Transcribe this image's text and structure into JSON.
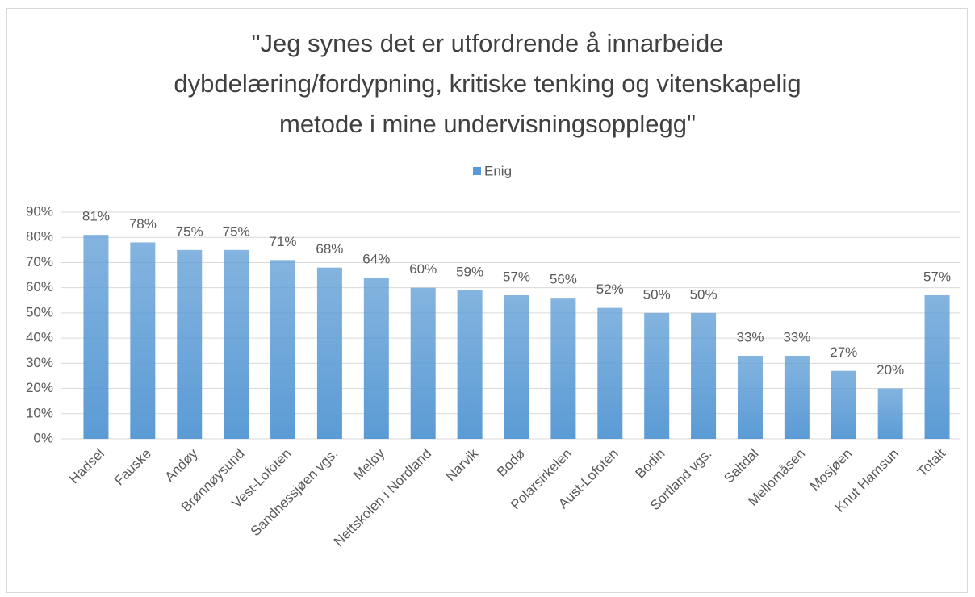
{
  "chart_data": {
    "type": "bar",
    "title": [
      "\"Jeg synes det er utfordrende å innarbeide",
      "dybdelæring/fordypning, kritiske tenking og vitenskapelig",
      "metode i mine undervisningsopplegg\""
    ],
    "categories": [
      "Hadsel",
      "Fauske",
      "Andøy",
      "Brønnøysund",
      "Vest-Lofoten",
      "Sandnessjøen vgs.",
      "Meløy",
      "Nettskolen i Nordland",
      "Narvik",
      "Bodø",
      "Polarsirkelen",
      "Aust-Lofoten",
      "Bodin",
      "Sortland vgs.",
      "Saltdal",
      "Mellomåsen",
      "Mosjøen",
      "Knut Hamsun",
      "Totalt"
    ],
    "series": [
      {
        "name": "Enig",
        "color": "#5b9bd5",
        "values": [
          81,
          78,
          75,
          75,
          71,
          68,
          64,
          60,
          59,
          57,
          56,
          52,
          50,
          50,
          33,
          33,
          27,
          20,
          57
        ],
        "value_labels": [
          "81%",
          "78%",
          "75%",
          "75%",
          "71%",
          "68%",
          "64%",
          "60%",
          "59%",
          "57%",
          "56%",
          "52%",
          "50%",
          "50%",
          "33%",
          "33%",
          "27%",
          "20%",
          "57%"
        ]
      }
    ],
    "ylim": [
      0,
      90
    ],
    "yticks": [
      {
        "value": 0,
        "label": "0%"
      },
      {
        "value": 10,
        "label": "10%"
      },
      {
        "value": 20,
        "label": "20%"
      },
      {
        "value": 30,
        "label": "30%"
      },
      {
        "value": 40,
        "label": "40%"
      },
      {
        "value": 50,
        "label": "50%"
      },
      {
        "value": 60,
        "label": "60%"
      },
      {
        "value": 70,
        "label": "70%"
      },
      {
        "value": 80,
        "label": "80%"
      },
      {
        "value": 90,
        "label": "90%"
      }
    ],
    "grid": true,
    "legend": "top"
  }
}
